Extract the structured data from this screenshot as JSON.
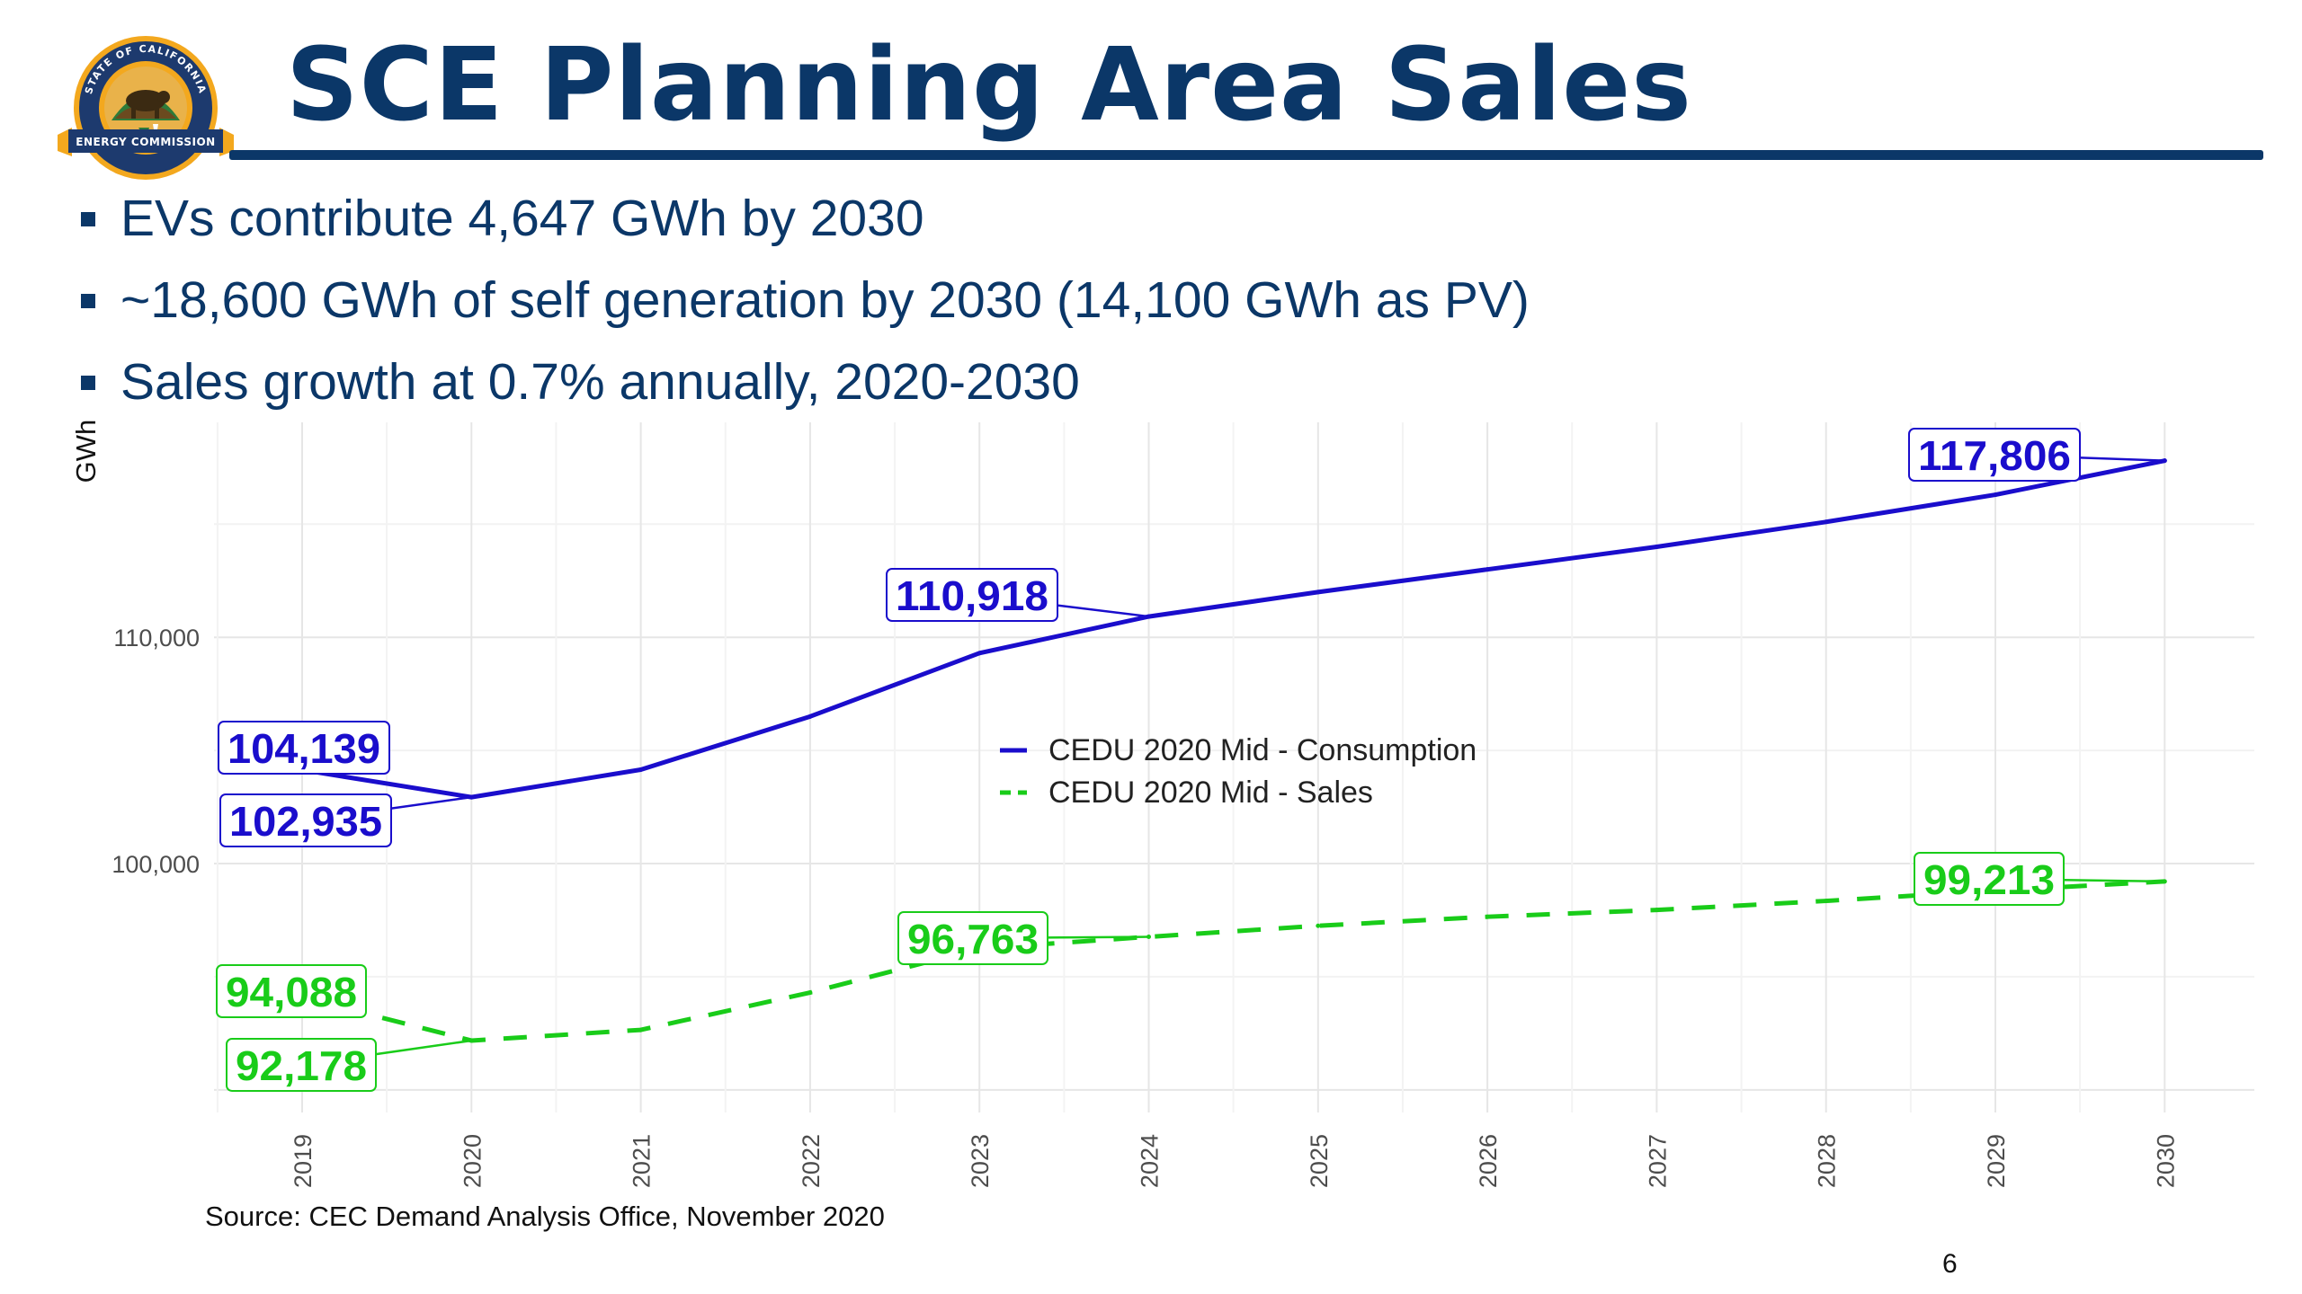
{
  "slide": {
    "title": "SCE Planning Area Sales",
    "bullets": [
      "EVs contribute 4,647 GWh by 2030",
      "~18,600 GWh of self generation by 2030 (14,100 GWh as PV)",
      "Sales growth at 0.7% annually, 2020-2030"
    ],
    "source": "Source: CEC Demand Analysis Office, November 2020",
    "page_number": "6"
  },
  "logo": {
    "top_text": "STATE OF CALIFORNIA",
    "banner_text": "ENERGY COMMISSION"
  },
  "colors": {
    "title": "#0b3768",
    "consumption": "#1a0dcc",
    "sales": "#19cc19",
    "grid": "#ececec",
    "logo_blue": "#1d3a6e",
    "logo_gold": "#f3a81e"
  },
  "chart_data": {
    "type": "line",
    "ylabel": "GWh",
    "xlabel": "",
    "ylim": [
      89000,
      119500
    ],
    "yticks": [
      100000,
      110000
    ],
    "ytick_labels": [
      "100,000",
      "110,000"
    ],
    "x": [
      "2019",
      "2020",
      "2021",
      "2022",
      "2023",
      "2024",
      "2025",
      "2026",
      "2027",
      "2028",
      "2029",
      "2030"
    ],
    "grid": true,
    "legend_position": "center",
    "series": [
      {
        "name": "CEDU 2020 Mid - Consumption",
        "style": "solid",
        "values": [
          104139,
          102935,
          104150,
          106500,
          109300,
          110918,
          112000,
          113000,
          114000,
          115100,
          116300,
          117806
        ]
      },
      {
        "name": "CEDU 2020 Mid - Sales",
        "style": "dashed",
        "values": [
          94088,
          92178,
          92650,
          94300,
          96250,
          96763,
          97250,
          97650,
          97950,
          98350,
          98800,
          99213
        ]
      }
    ],
    "data_labels": [
      {
        "series": 0,
        "index": 0,
        "text": "104,139"
      },
      {
        "series": 0,
        "index": 1,
        "text": "102,935"
      },
      {
        "series": 0,
        "index": 5,
        "text": "110,918"
      },
      {
        "series": 0,
        "index": 11,
        "text": "117,806"
      },
      {
        "series": 1,
        "index": 0,
        "text": "94,088"
      },
      {
        "series": 1,
        "index": 1,
        "text": "92,178"
      },
      {
        "series": 1,
        "index": 5,
        "text": "96,763"
      },
      {
        "series": 1,
        "index": 11,
        "text": "99,213"
      }
    ]
  }
}
